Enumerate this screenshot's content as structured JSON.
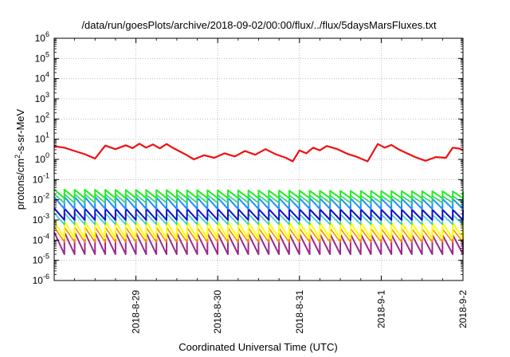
{
  "chart_data": {
    "type": "line",
    "title": "/data/run/goesPlots/archive/2018-09-02/00:00/flux/../flux/5daysMarsFluxes.txt",
    "xlabel": "Coordinated Universal Time (UTC)",
    "ylabel_parts": [
      "protons/cm",
      "2",
      "-s-sr-MeV"
    ],
    "x_range": [
      "2018-08-28T00:00",
      "2018-09-02T00:00"
    ],
    "x_ticks": [
      "2018-8-29",
      "2018-8-30",
      "2018-8-31",
      "2018-9-1",
      "2018-9-2"
    ],
    "y_scale": "log",
    "ylim": [
      1e-06,
      1000000.0
    ],
    "y_tick_exponents": [
      -6,
      -5,
      -4,
      -3,
      -2,
      -1,
      0,
      1,
      2,
      3,
      4,
      5,
      6
    ],
    "y_tick_base": "10",
    "grid": true,
    "series": [
      {
        "color": "#ee1111",
        "width": 2.2,
        "x": [
          "2018-08-28T00:00",
          "2018-08-28T03:00",
          "2018-08-28T06:00",
          "2018-08-28T09:00",
          "2018-08-28T12:00",
          "2018-08-28T15:00",
          "2018-08-28T18:00",
          "2018-08-28T21:00",
          "2018-08-28T23:00",
          "2018-08-29T01:00",
          "2018-08-29T03:00",
          "2018-08-29T05:00",
          "2018-08-29T07:00",
          "2018-08-29T09:00",
          "2018-08-29T11:00",
          "2018-08-29T13:00",
          "2018-08-29T15:00",
          "2018-08-29T17:00",
          "2018-08-29T20:00",
          "2018-08-29T23:00",
          "2018-08-30T02:00",
          "2018-08-30T05:00",
          "2018-08-30T08:00",
          "2018-08-30T11:00",
          "2018-08-30T14:00",
          "2018-08-30T17:00",
          "2018-08-30T20:00",
          "2018-08-30T22:00",
          "2018-08-31T00:00",
          "2018-08-31T02:00",
          "2018-08-31T04:00",
          "2018-08-31T06:00",
          "2018-08-31T08:00",
          "2018-08-31T11:00",
          "2018-08-31T14:00",
          "2018-08-31T17:00",
          "2018-08-31T20:00",
          "2018-08-31T23:00",
          "2018-09-01T01:00",
          "2018-09-01T03:00",
          "2018-09-01T05:00",
          "2018-09-01T07:00",
          "2018-09-01T10:00",
          "2018-09-01T13:00",
          "2018-09-01T16:00",
          "2018-09-01T19:00",
          "2018-09-01T21:00",
          "2018-09-01T23:00",
          "2018-09-02T00:00"
        ],
        "y": [
          4.5,
          3.8,
          2.6,
          1.8,
          1.1,
          4.8,
          3.2,
          5.0,
          3.6,
          6.0,
          3.8,
          5.5,
          3.5,
          5.8,
          3.6,
          2.4,
          1.6,
          1.0,
          1.6,
          1.2,
          2.0,
          1.4,
          2.6,
          1.7,
          3.2,
          1.8,
          1.2,
          0.8,
          2.8,
          2.0,
          3.8,
          2.8,
          4.6,
          3.3,
          1.9,
          1.3,
          0.8,
          5.8,
          3.8,
          5.2,
          3.2,
          2.2,
          1.3,
          0.85,
          1.3,
          1.2,
          3.8,
          3.4,
          2.8
        ]
      },
      {
        "color": "#22ee22",
        "width": 2.0,
        "sawtooth": {
          "period_h": 3,
          "low": 0.012,
          "peak_start": 0.032,
          "peak_end": 0.026
        }
      },
      {
        "color": "#2ecc71",
        "width": 1.6,
        "sawtooth": {
          "period_h": 3,
          "low": 0.007,
          "peak_start": 0.019,
          "peak_end": 0.015
        }
      },
      {
        "color": "#1e90ff",
        "width": 2.0,
        "sawtooth": {
          "period_h": 3,
          "low": 0.0035,
          "peak_start": 0.014,
          "peak_end": 0.011
        }
      },
      {
        "color": "#1010cc",
        "width": 2.0,
        "sawtooth": {
          "period_h": 3,
          "low": 0.001,
          "peak_start": 0.0038,
          "peak_end": 0.0032
        }
      },
      {
        "color": "#33cccc",
        "width": 1.6,
        "sawtooth": {
          "period_h": 3,
          "low": 0.0006,
          "peak_start": 0.0022,
          "peak_end": 0.0018
        }
      },
      {
        "color": "#ffff00",
        "width": 2.0,
        "sawtooth": {
          "period_h": 3,
          "low": 0.00012,
          "peak_start": 0.0009,
          "peak_end": 0.0007
        }
      },
      {
        "color": "#ff8800",
        "width": 1.6,
        "sawtooth": {
          "period_h": 3,
          "low": 8e-05,
          "peak_start": 0.00045,
          "peak_end": 0.00035
        }
      },
      {
        "color": "#9b2a8a",
        "width": 2.0,
        "sawtooth": {
          "period_h": 3,
          "low": 2e-05,
          "peak_start": 0.00025,
          "peak_end": 0.00018
        }
      }
    ]
  }
}
